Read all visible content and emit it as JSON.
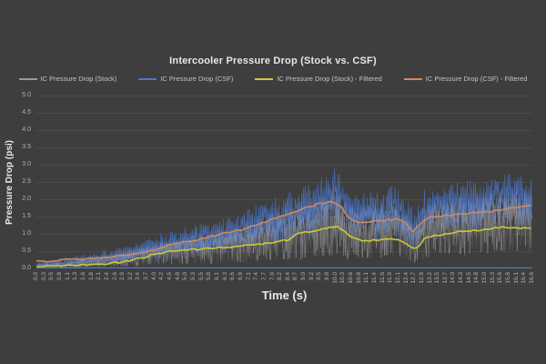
{
  "chart_data": {
    "type": "line",
    "title": "Intercooler Pressure Drop (Stock vs. CSF)",
    "xlabel": "Time (s)",
    "ylabel": "Pressure Drop (psi)",
    "ylim": [
      0,
      5
    ],
    "x_range_seconds": [
      0,
      16.6
    ],
    "grid": true,
    "legend_position": "top",
    "background": "#3e3e3e",
    "grid_color": "#4b4b4b",
    "axis_line_color": "#5078b8",
    "tick_label_color": "#b2b2b2",
    "title_color": "#e8e8e8",
    "y_ticks": [
      5,
      4.5,
      4,
      3.5,
      3,
      2.5,
      2,
      1.5,
      1,
      0.5,
      0
    ],
    "x_tick_labels": [
      "0.0",
      "0.3",
      "0.5",
      "0.8",
      "1.1",
      "1.3",
      "1.6",
      "1.8",
      "2.1",
      "2.4",
      "2.6",
      "2.9",
      "3.2",
      "3.4",
      "3.7",
      "4.0",
      "4.2",
      "4.5",
      "4.8",
      "5.0",
      "5.3",
      "5.5",
      "5.8",
      "6.1",
      "6.3",
      "6.6",
      "6.9",
      "7.1",
      "7.4",
      "7.7",
      "7.9",
      "8.2",
      "8.4",
      "8.7",
      "9.0",
      "9.2",
      "9.5",
      "9.8",
      "10.0",
      "10.3",
      "10.6",
      "10.8",
      "11.1",
      "11.4",
      "11.6",
      "11.9",
      "12.1",
      "12.4",
      "12.7",
      "12.9",
      "13.2",
      "13.5",
      "13.7",
      "14.0",
      "14.3",
      "14.5",
      "14.8",
      "15.0",
      "15.3",
      "15.6",
      "15.8",
      "16.1",
      "16.4",
      "16.6"
    ],
    "series": [
      {
        "name": "IC Pressure Drop (Stock)",
        "color": "#9a9a9a",
        "style": "noisy",
        "envelope": {
          "t": [
            0,
            1,
            2,
            3,
            4,
            5,
            6,
            7,
            8,
            9,
            10,
            10.5,
            11,
            11.5,
            12,
            12.3,
            12.7,
            13,
            13.5,
            14,
            14.5,
            15,
            15.5,
            16,
            16.6
          ],
          "low": [
            0,
            0,
            0.02,
            0.05,
            0.08,
            0.1,
            0.12,
            0.15,
            0.2,
            0.25,
            0.3,
            0.2,
            0.25,
            0.3,
            0.3,
            0.25,
            0.1,
            0.25,
            0.35,
            0.35,
            0.4,
            0.4,
            0.45,
            0.45,
            0.4
          ],
          "high": [
            0.12,
            0.2,
            0.35,
            0.5,
            0.75,
            0.9,
            1.0,
            1.2,
            1.5,
            1.7,
            2.0,
            1.6,
            1.6,
            1.7,
            1.8,
            1.6,
            1.2,
            1.6,
            1.9,
            1.9,
            2.0,
            2.0,
            2.1,
            2.1,
            2.0
          ]
        }
      },
      {
        "name": "IC Pressure Drop (CSF)",
        "color": "#4e78c3",
        "style": "noisy",
        "envelope": {
          "t": [
            0,
            1,
            2,
            3,
            4,
            5,
            6,
            7,
            8,
            9,
            10,
            10.4,
            10.8,
            11.3,
            12,
            12.4,
            12.7,
            13,
            13.5,
            14,
            14.5,
            15,
            15.5,
            16,
            16.6
          ],
          "low": [
            0,
            0.03,
            0.06,
            0.1,
            0.2,
            0.3,
            0.38,
            0.5,
            0.65,
            0.85,
            1.0,
            0.85,
            0.75,
            0.85,
            0.9,
            0.55,
            0.45,
            0.85,
            1.0,
            1.0,
            1.05,
            1.1,
            1.15,
            1.2,
            1.1
          ],
          "high": [
            0.18,
            0.3,
            0.45,
            0.65,
            1.0,
            1.2,
            1.4,
            1.7,
            2.1,
            2.4,
            2.9,
            2.5,
            2.2,
            2.3,
            2.4,
            2.0,
            1.8,
            2.3,
            2.5,
            2.5,
            2.6,
            2.6,
            2.7,
            2.8,
            2.7
          ]
        }
      },
      {
        "name": "IC Pressure Drop (Stock) - Filtered",
        "color": "#ccc93b",
        "style": "smooth",
        "points": {
          "t": [
            0,
            0.5,
            1,
            1.5,
            2,
            2.5,
            3,
            3.5,
            4,
            4.5,
            5,
            5.5,
            6,
            6.5,
            7,
            7.5,
            8,
            8.4,
            8.7,
            9,
            9.4,
            9.8,
            10.1,
            10.4,
            10.7,
            11,
            11.4,
            11.8,
            12.2,
            12.5,
            12.7,
            13,
            13.3,
            13.7,
            14,
            14.4,
            14.8,
            15.2,
            15.6,
            16,
            16.3,
            16.6
          ],
          "v": [
            0.06,
            0.07,
            0.08,
            0.1,
            0.12,
            0.15,
            0.2,
            0.3,
            0.42,
            0.5,
            0.53,
            0.56,
            0.6,
            0.63,
            0.66,
            0.7,
            0.78,
            0.82,
            1.0,
            1.05,
            1.1,
            1.18,
            1.22,
            1.0,
            0.84,
            0.8,
            0.82,
            0.85,
            0.82,
            0.62,
            0.55,
            0.88,
            0.95,
            1.0,
            1.05,
            1.08,
            1.1,
            1.15,
            1.2,
            1.18,
            1.16,
            1.15
          ]
        }
      },
      {
        "name": "IC Pressure Drop (CSF) - Filtered",
        "color": "#cf8a5f",
        "style": "smooth",
        "points": {
          "t": [
            0,
            0.5,
            1,
            1.5,
            2,
            2.5,
            3,
            3.5,
            4,
            4.5,
            5,
            5.5,
            6,
            6.5,
            7,
            7.5,
            8,
            8.5,
            9,
            9.4,
            9.9,
            10.2,
            10.5,
            10.8,
            11.2,
            11.6,
            12,
            12.3,
            12.6,
            12.9,
            13.2,
            13.6,
            14,
            14.4,
            14.8,
            15.2,
            15.6,
            16,
            16.3,
            16.6
          ],
          "v": [
            0.2,
            0.22,
            0.25,
            0.28,
            0.3,
            0.33,
            0.38,
            0.45,
            0.55,
            0.68,
            0.78,
            0.85,
            0.95,
            1.05,
            1.15,
            1.3,
            1.45,
            1.6,
            1.75,
            1.85,
            1.95,
            1.8,
            1.42,
            1.35,
            1.35,
            1.38,
            1.42,
            1.38,
            1.05,
            1.35,
            1.5,
            1.52,
            1.55,
            1.58,
            1.62,
            1.65,
            1.7,
            1.75,
            1.78,
            1.82
          ]
        }
      }
    ]
  }
}
